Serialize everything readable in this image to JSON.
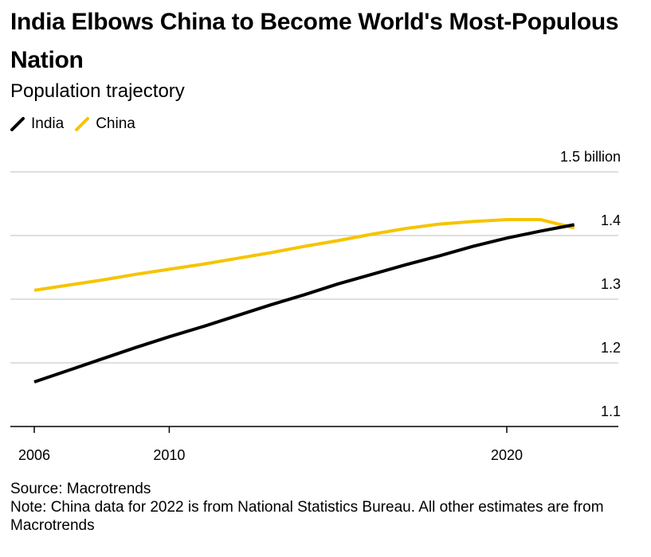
{
  "header": {
    "title": "India Elbows China to Become World's Most-Populous Nation",
    "subtitle": "Population trajectory"
  },
  "legend": [
    {
      "label": "India",
      "color": "#000000"
    },
    {
      "label": "China",
      "color": "#f5c400"
    }
  ],
  "footer": {
    "source": "Source: Macrotrends",
    "note": "Note: China data for 2022 is from National Statistics Bureau. All other estimates are from Macrotrends"
  },
  "chart_data": {
    "type": "line",
    "title": "India Elbows China to Become World's Most-Populous Nation",
    "subtitle": "Population trajectory",
    "xlabel": "",
    "ylabel": "",
    "xlim": [
      2006,
      2023.3
    ],
    "ylim": [
      1.1,
      1.5
    ],
    "x_ticks": [
      2006,
      2010,
      2020
    ],
    "x_tick_labels": [
      "2006",
      "2010",
      "2020"
    ],
    "y_ticks": [
      1.1,
      1.2,
      1.3,
      1.4,
      1.5
    ],
    "y_tick_labels": [
      "1.1",
      "1.2",
      "1.3",
      "1.4",
      "1.5 billion"
    ],
    "grid": true,
    "legend_position": "top-left",
    "x": [
      2006,
      2007,
      2008,
      2009,
      2010,
      2011,
      2012,
      2013,
      2014,
      2015,
      2016,
      2017,
      2018,
      2019,
      2020,
      2021,
      2022
    ],
    "series": [
      {
        "name": "India",
        "color": "#000000",
        "values": [
          1.17,
          1.188,
          1.206,
          1.224,
          1.241,
          1.257,
          1.274,
          1.291,
          1.307,
          1.324,
          1.339,
          1.354,
          1.368,
          1.383,
          1.396,
          1.407,
          1.417
        ]
      },
      {
        "name": "China",
        "color": "#f5c400",
        "values": [
          1.314,
          1.322,
          1.33,
          1.339,
          1.347,
          1.355,
          1.364,
          1.373,
          1.383,
          1.392,
          1.402,
          1.411,
          1.418,
          1.422,
          1.425,
          1.425,
          1.412
        ]
      }
    ]
  }
}
